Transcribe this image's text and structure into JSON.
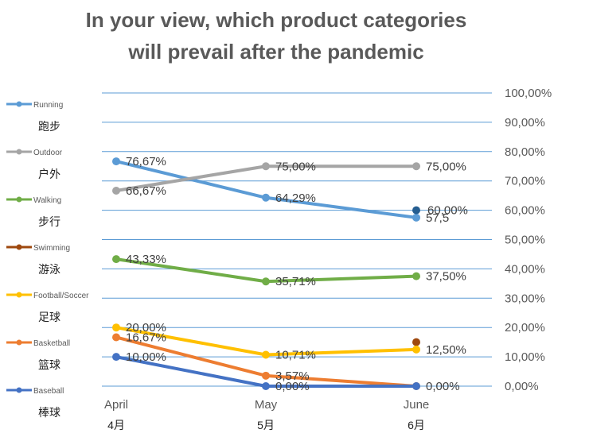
{
  "chart_data": {
    "type": "line",
    "title_line1": "In your view, which product categories",
    "title_line2": "will prevail after the pandemic",
    "categories": [
      "April",
      "May",
      "June"
    ],
    "categories_sub": [
      "4月",
      "5月",
      "6月"
    ],
    "y_ticks": [
      "0,00%",
      "10,00%",
      "20,00%",
      "30,00%",
      "40,00%",
      "50,00%",
      "60,00%",
      "70,00%",
      "80,00%",
      "90,00%",
      "100,00%"
    ],
    "ylim": [
      0,
      100
    ],
    "grid": true,
    "legend_position": "left",
    "series": [
      {
        "name": "Running",
        "name_zh": "跑步",
        "color": "#5B9BD5",
        "values": [
          76.67,
          64.29,
          57.5
        ],
        "labels": [
          "76,67%",
          "64,29%",
          "57,5"
        ]
      },
      {
        "name": "Outdoor",
        "name_zh": "户外",
        "color": "#A5A5A5",
        "values": [
          66.67,
          75.0,
          75.0
        ],
        "labels": [
          "66,67%",
          "75,00%",
          "75,00%"
        ]
      },
      {
        "name": "Walking",
        "name_zh": "步行",
        "color": "#70AD47",
        "values": [
          43.33,
          35.71,
          37.5
        ],
        "labels": [
          "43,33%",
          "35,71%",
          "37,50%"
        ]
      },
      {
        "name": "Swimming",
        "name_zh": "游泳",
        "color": "#9E480E",
        "values": [
          null,
          null,
          15.0
        ],
        "labels": [
          "",
          "",
          ""
        ]
      },
      {
        "name": "Football/Soccer",
        "name_zh": "足球",
        "color": "#FFC000",
        "values": [
          20.0,
          10.71,
          12.5
        ],
        "labels": [
          "20,00%",
          "10,71%",
          "12,50%"
        ]
      },
      {
        "name": "Basketball",
        "name_zh": "篮球",
        "color": "#ED7D31",
        "values": [
          16.67,
          3.57,
          0.0
        ],
        "labels": [
          "16,67%",
          "3,57%",
          ""
        ]
      },
      {
        "name": "Baseball",
        "name_zh": "棒球",
        "color": "#4472C4",
        "values": [
          10.0,
          0.0,
          0.0
        ],
        "labels": [
          "10,00%",
          "0,00%",
          "0,00%"
        ]
      }
    ],
    "extra_points": [
      {
        "color": "#255E91",
        "x_index": 2,
        "value": 60.0,
        "label": "60,00%"
      }
    ]
  }
}
